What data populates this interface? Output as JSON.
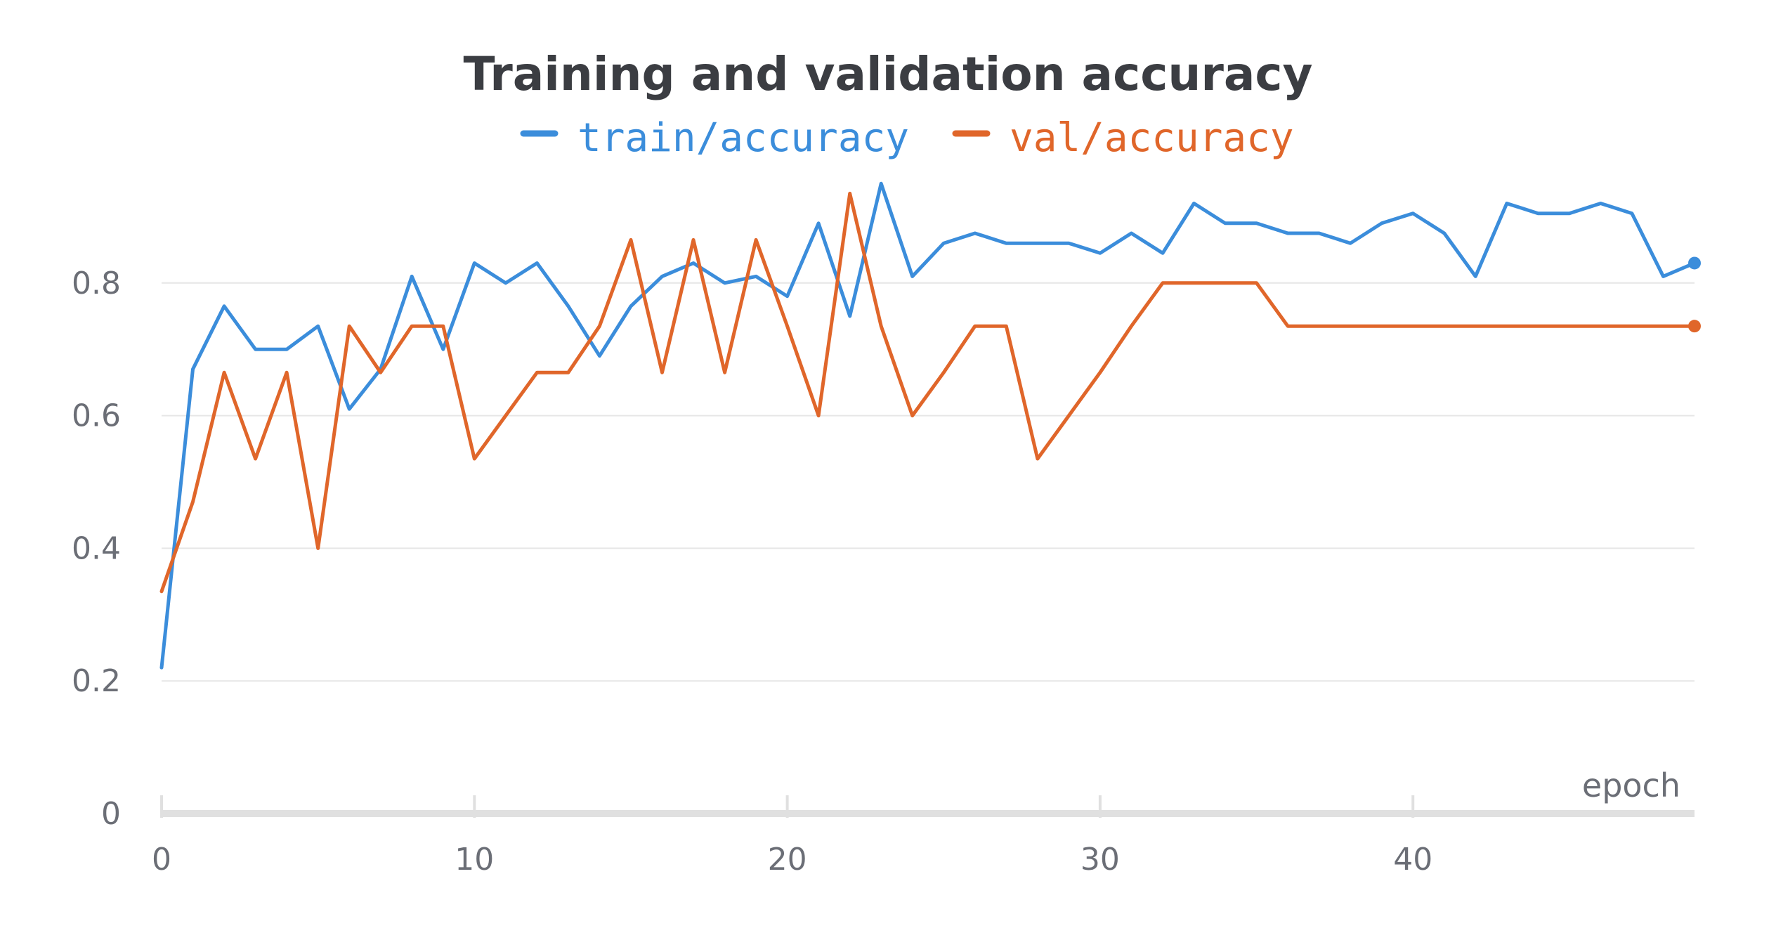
{
  "chart_data": {
    "type": "line",
    "title": "Training and validation accuracy",
    "xlabel": "epoch",
    "ylabel": "",
    "xlim": [
      0,
      49
    ],
    "ylim": [
      0,
      1.0
    ],
    "x_ticks": [
      0,
      10,
      20,
      30,
      40
    ],
    "y_ticks": [
      0,
      0.2,
      0.4,
      0.6,
      0.8
    ],
    "y_tick_labels": [
      "0",
      "0.2",
      "0.4",
      "0.6",
      "0.8"
    ],
    "x_tick_labels": [
      "0",
      "10",
      "20",
      "30",
      "40"
    ],
    "grid": true,
    "legend_position": "top-center",
    "x": [
      0,
      1,
      2,
      3,
      4,
      5,
      6,
      7,
      8,
      9,
      10,
      11,
      12,
      13,
      14,
      15,
      16,
      17,
      18,
      19,
      20,
      21,
      22,
      23,
      24,
      25,
      26,
      27,
      28,
      29,
      30,
      31,
      32,
      33,
      34,
      35,
      36,
      37,
      38,
      39,
      40,
      41,
      42,
      43,
      44,
      45,
      46,
      47,
      48,
      49
    ],
    "series": [
      {
        "name": "train/accuracy",
        "color": "#3b8ddb",
        "end_marker": true,
        "values": [
          0.22,
          0.67,
          0.765,
          0.7,
          0.7,
          0.735,
          0.61,
          0.67,
          0.81,
          0.7,
          0.83,
          0.8,
          0.83,
          0.765,
          0.69,
          0.765,
          0.81,
          0.83,
          0.8,
          0.81,
          0.78,
          0.89,
          0.75,
          0.95,
          0.81,
          0.86,
          0.875,
          0.86,
          0.86,
          0.86,
          0.845,
          0.875,
          0.845,
          0.92,
          0.89,
          0.89,
          0.875,
          0.875,
          0.86,
          0.89,
          0.905,
          0.875,
          0.81,
          0.92,
          0.905,
          0.905,
          0.92,
          0.905,
          0.81,
          0.83
        ]
      },
      {
        "name": "val/accuracy",
        "color": "#e0662a",
        "end_marker": true,
        "values": [
          0.335,
          0.47,
          0.665,
          0.535,
          0.665,
          0.4,
          0.735,
          0.665,
          0.735,
          0.735,
          0.535,
          0.6,
          0.665,
          0.665,
          0.735,
          0.865,
          0.665,
          0.865,
          0.665,
          0.865,
          0.735,
          0.6,
          0.935,
          0.735,
          0.6,
          0.665,
          0.735,
          0.735,
          0.535,
          0.6,
          0.665,
          0.735,
          0.8,
          0.8,
          0.8,
          0.8,
          0.735,
          0.735,
          0.735,
          0.735,
          0.735,
          0.735,
          0.735,
          0.735,
          0.735,
          0.735,
          0.735,
          0.735,
          0.735,
          0.735
        ]
      }
    ]
  }
}
